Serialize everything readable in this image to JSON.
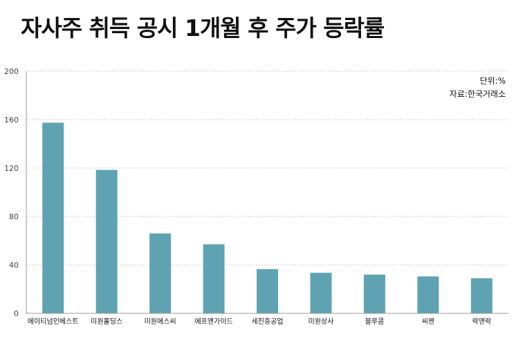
{
  "title": "자사주 취득 공시 1개월 후 주가 등락률",
  "unit_note": "단위:%",
  "source_note": "자료:한국거래소",
  "colors": {
    "bar": "#5fa3b3",
    "grid": "#cccccc",
    "axis": "#999999",
    "text": "#111111"
  },
  "chart_data": {
    "type": "bar",
    "title": "자사주 취득 공시 1개월 후 주가 등락률",
    "categories": [
      "에이티넘인베스트",
      "미원홀딩스",
      "미원에스씨",
      "에프앤가이드",
      "세진중공업",
      "미원상사",
      "블루콤",
      "씨젠",
      "락앤락"
    ],
    "values": [
      157.5,
      118.5,
      66,
      57,
      36.5,
      33.5,
      32,
      30.5,
      29
    ],
    "ylim": [
      0,
      200
    ],
    "yticks": [
      0,
      40,
      80,
      120,
      160,
      200
    ],
    "grid": true,
    "xlabel": "",
    "ylabel": ""
  }
}
